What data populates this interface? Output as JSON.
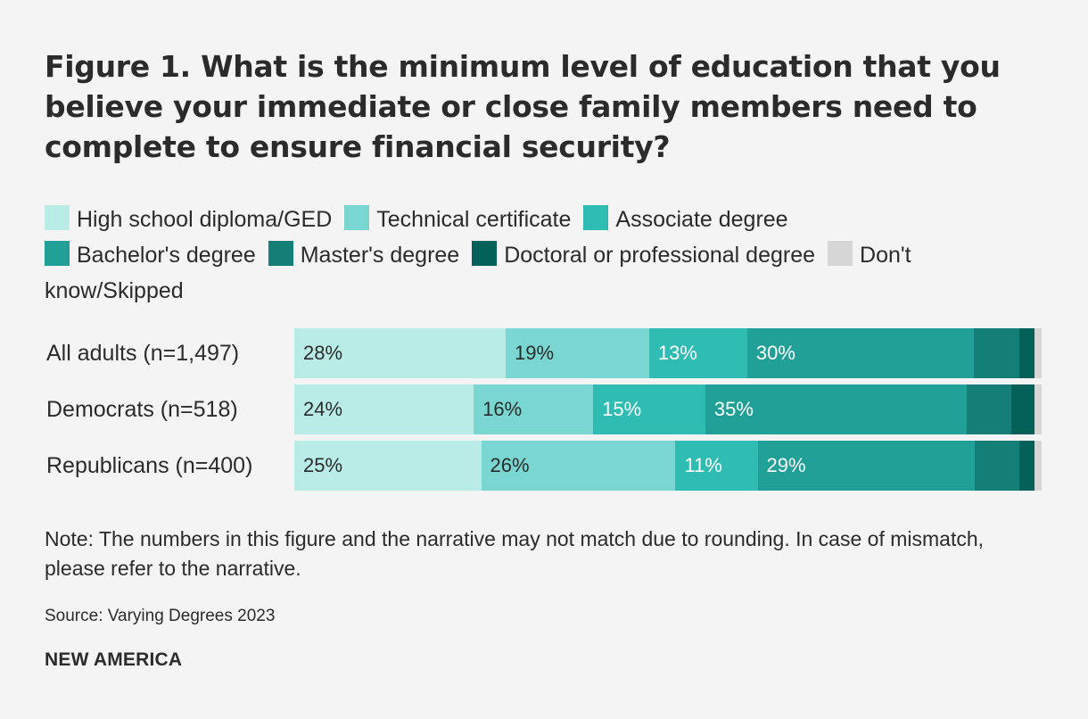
{
  "chart_data": {
    "type": "bar",
    "orientation": "horizontal",
    "stacked": true,
    "title": "Figure 1. What is the minimum level of education that you believe your immediate or close family members need to complete to ensure financial security?",
    "categories": [
      "All adults (n=1,497)",
      "Democrats (n=518)",
      "Republicans (n=400)"
    ],
    "series": [
      {
        "name": "High school diploma/GED",
        "color": "#b9ece6",
        "label_color": "#2b2b2b",
        "values": [
          28,
          24,
          25
        ],
        "labels": [
          "28%",
          "24%",
          "25%"
        ]
      },
      {
        "name": "Technical certificate",
        "color": "#79d6d0",
        "label_color": "#2b2b2b",
        "values": [
          19,
          16,
          26
        ],
        "labels": [
          "19%",
          "16%",
          "26%"
        ]
      },
      {
        "name": "Associate degree",
        "color": "#2fbdb3",
        "label_color": "#ffffff",
        "values": [
          13,
          15,
          11
        ],
        "labels": [
          "13%",
          "15%",
          "11%"
        ]
      },
      {
        "name": "Bachelor's degree",
        "color": "#20a096",
        "label_color": "#ffffff",
        "values": [
          30,
          35,
          29
        ],
        "labels": [
          "30%",
          "35%",
          "29%"
        ]
      },
      {
        "name": "Master's degree",
        "color": "#137f77",
        "label_color": "#ffffff",
        "values": [
          6,
          6,
          6
        ],
        "labels": [
          "",
          "",
          ""
        ]
      },
      {
        "name": "Doctoral or professional degree",
        "color": "#04615a",
        "label_color": "#ffffff",
        "values": [
          2,
          3,
          2
        ],
        "labels": [
          "",
          "",
          ""
        ]
      },
      {
        "name": "Don't know/Skipped",
        "color": "#d6d6d6",
        "label_color": "#2b2b2b",
        "values": [
          1,
          1,
          1
        ],
        "labels": [
          "",
          "",
          ""
        ]
      }
    ],
    "xlim": [
      0,
      100
    ],
    "grid": false,
    "legend_position": "top"
  },
  "legend_line2_wrap": "know/Skipped",
  "note": "Note: The numbers in this figure and the narrative may not match due to rounding. In case of mismatch, please refer to the narrative.",
  "source": "Source: Varying Degrees 2023",
  "brand": "NEW AMERICA"
}
